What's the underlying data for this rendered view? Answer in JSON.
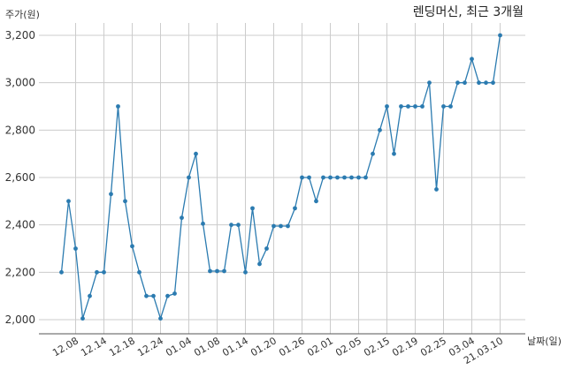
{
  "chart_data": {
    "type": "line",
    "title": "렌딩머신, 최근 3개월",
    "ylabel": "주가(원)",
    "xlabel": "날짜(일)",
    "ylim": [
      1950,
      3300
    ],
    "yticks": [
      2000,
      2200,
      2400,
      2600,
      2800,
      3000,
      3200
    ],
    "ytick_labels": [
      "2,000",
      "2,200",
      "2,400",
      "2,600",
      "2,800",
      "3,000",
      "3,200"
    ],
    "xtick_labels": [
      "12.08",
      "12.14",
      "12.18",
      "12.24",
      "01.04",
      "01.08",
      "01.14",
      "01.20",
      "01.26",
      "02.01",
      "02.05",
      "02.15",
      "02.19",
      "02.25",
      "03.04",
      "21.03.10"
    ],
    "xtick_positions": [
      2,
      6,
      10,
      14,
      18,
      22,
      26,
      30,
      34,
      38,
      42,
      46,
      50,
      54,
      58,
      62
    ],
    "grid": true,
    "color": "#2b7bb0",
    "series": [
      {
        "values": [
          2200,
          2500,
          2300,
          2005,
          2100,
          2200,
          2200,
          2530,
          2900,
          2500,
          2310,
          2200,
          2100,
          2100,
          2005,
          2100,
          2110,
          2430,
          2600,
          2700,
          2405,
          2205,
          2205,
          2205,
          2400,
          2400,
          2200,
          2470,
          2235,
          2300,
          2395,
          2395,
          2395,
          2470,
          2600,
          2600,
          2500,
          2600,
          2600,
          2600,
          2600,
          2600,
          2600,
          2600,
          2700,
          2800,
          2900,
          2700,
          2900,
          2900,
          2900,
          2900,
          3000,
          2550,
          2900,
          2900,
          3000,
          3000,
          3100,
          3000,
          3000,
          3000,
          3200
        ]
      }
    ]
  }
}
